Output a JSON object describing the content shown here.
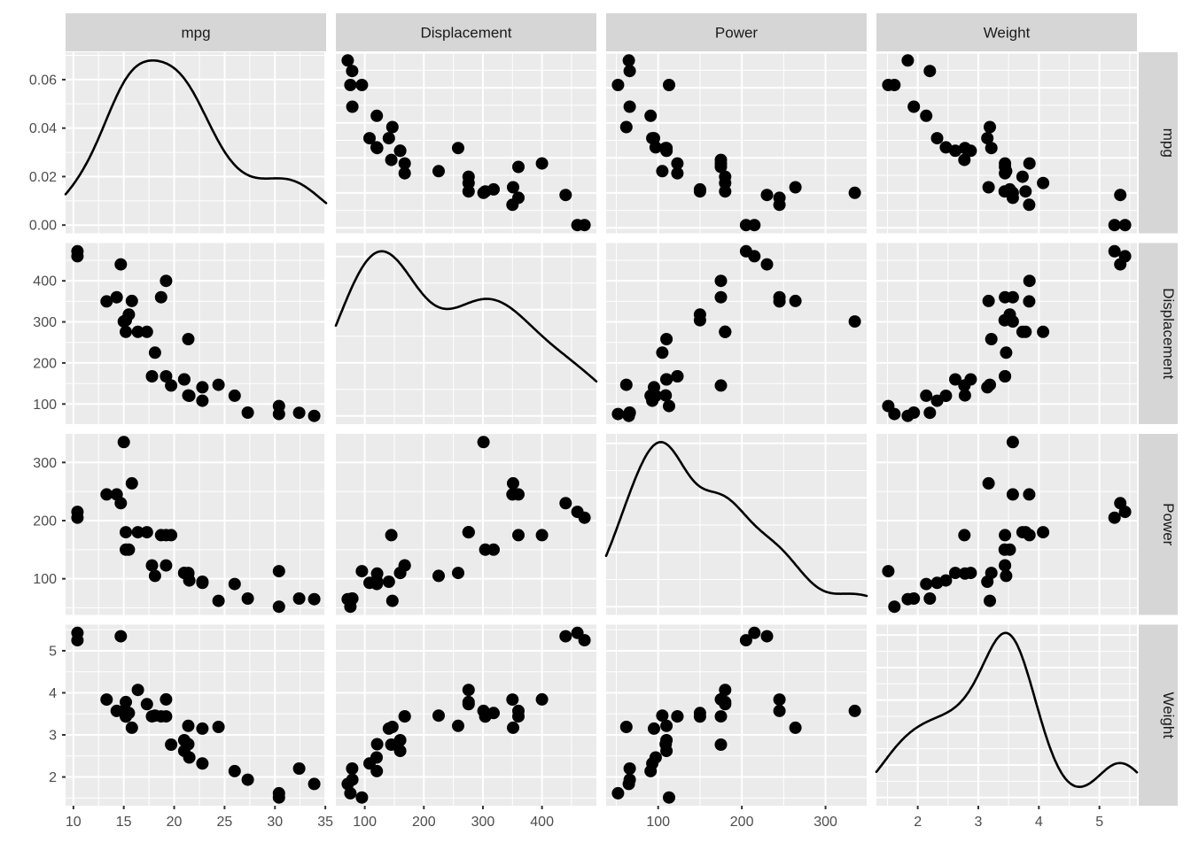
{
  "chart_data": {
    "type": "scatter",
    "subtype": "scatterplot-matrix",
    "diagonal": "density",
    "title": "",
    "legend": "none",
    "grid": "on",
    "facets_top": [
      "mpg",
      "Displacement",
      "Power",
      "Weight"
    ],
    "facets_right": [
      "mpg",
      "Displacement",
      "Power",
      "Weight"
    ],
    "density_axis_ticks": [
      {
        "v": 0.0,
        "label": "0.00"
      },
      {
        "v": 0.02,
        "label": "0.02"
      },
      {
        "v": 0.04,
        "label": "0.04"
      },
      {
        "v": 0.06,
        "label": "0.06"
      }
    ],
    "variables": [
      {
        "key": "mpg",
        "label": "mpg",
        "ticks": [
          {
            "v": 10,
            "label": "10"
          },
          {
            "v": 15,
            "label": "15"
          },
          {
            "v": 20,
            "label": "20"
          },
          {
            "v": 25,
            "label": "25"
          },
          {
            "v": 30,
            "label": "30"
          },
          {
            "v": 35,
            "label": "35"
          }
        ],
        "values": [
          21,
          21,
          22.8,
          21.4,
          18.7,
          18.1,
          14.3,
          24.4,
          22.8,
          19.2,
          17.8,
          16.4,
          17.3,
          15.2,
          10.4,
          10.4,
          14.7,
          32.4,
          30.4,
          33.9,
          21.5,
          15.5,
          15.2,
          13.3,
          19.2,
          27.3,
          26,
          30.4,
          15.8,
          19.7,
          15,
          21.4
        ]
      },
      {
        "key": "displacement",
        "label": "Displacement",
        "ticks": [
          {
            "v": 100,
            "label": "100"
          },
          {
            "v": 200,
            "label": "200"
          },
          {
            "v": 300,
            "label": "300"
          },
          {
            "v": 400,
            "label": "400"
          }
        ],
        "values": [
          160,
          160,
          108,
          258,
          360,
          225,
          360,
          146.7,
          140.8,
          167.6,
          167.6,
          275.8,
          275.8,
          275.8,
          472,
          460,
          440,
          78.7,
          75.7,
          71.1,
          120.1,
          318,
          304,
          350,
          400,
          79,
          120.3,
          95.1,
          351,
          145,
          301,
          121
        ]
      },
      {
        "key": "power",
        "label": "Power",
        "ticks": [
          {
            "v": 100,
            "label": "100"
          },
          {
            "v": 200,
            "label": "200"
          },
          {
            "v": 300,
            "label": "300"
          }
        ],
        "values": [
          110,
          110,
          93,
          110,
          175,
          105,
          245,
          62,
          95,
          123,
          123,
          180,
          180,
          180,
          205,
          215,
          230,
          66,
          52,
          65,
          97,
          150,
          150,
          245,
          175,
          66,
          91,
          113,
          264,
          175,
          335,
          109
        ]
      },
      {
        "key": "weight",
        "label": "Weight",
        "ticks": [
          {
            "v": 2,
            "label": "2"
          },
          {
            "v": 3,
            "label": "3"
          },
          {
            "v": 4,
            "label": "4"
          },
          {
            "v": 5,
            "label": "5"
          }
        ],
        "values": [
          2.62,
          2.875,
          2.32,
          3.215,
          3.44,
          3.46,
          3.57,
          3.19,
          3.15,
          3.44,
          3.44,
          4.07,
          3.73,
          3.78,
          5.25,
          5.424,
          5.345,
          2.2,
          1.615,
          1.835,
          2.465,
          3.52,
          3.435,
          3.84,
          3.845,
          1.935,
          2.14,
          1.513,
          3.17,
          2.77,
          3.57,
          2.78
        ]
      }
    ],
    "style": {
      "background": "#FFFFFF",
      "panel_bg": "#EBEBEB",
      "grid_color": "#FFFFFF",
      "strip_bg": "#D6D6D6",
      "strip_text_color": "#1A1A1A",
      "axis_text_color": "#4D4D4D",
      "tick_color": "#333333",
      "point_color": "#000000",
      "density_line_color": "#000000"
    }
  }
}
